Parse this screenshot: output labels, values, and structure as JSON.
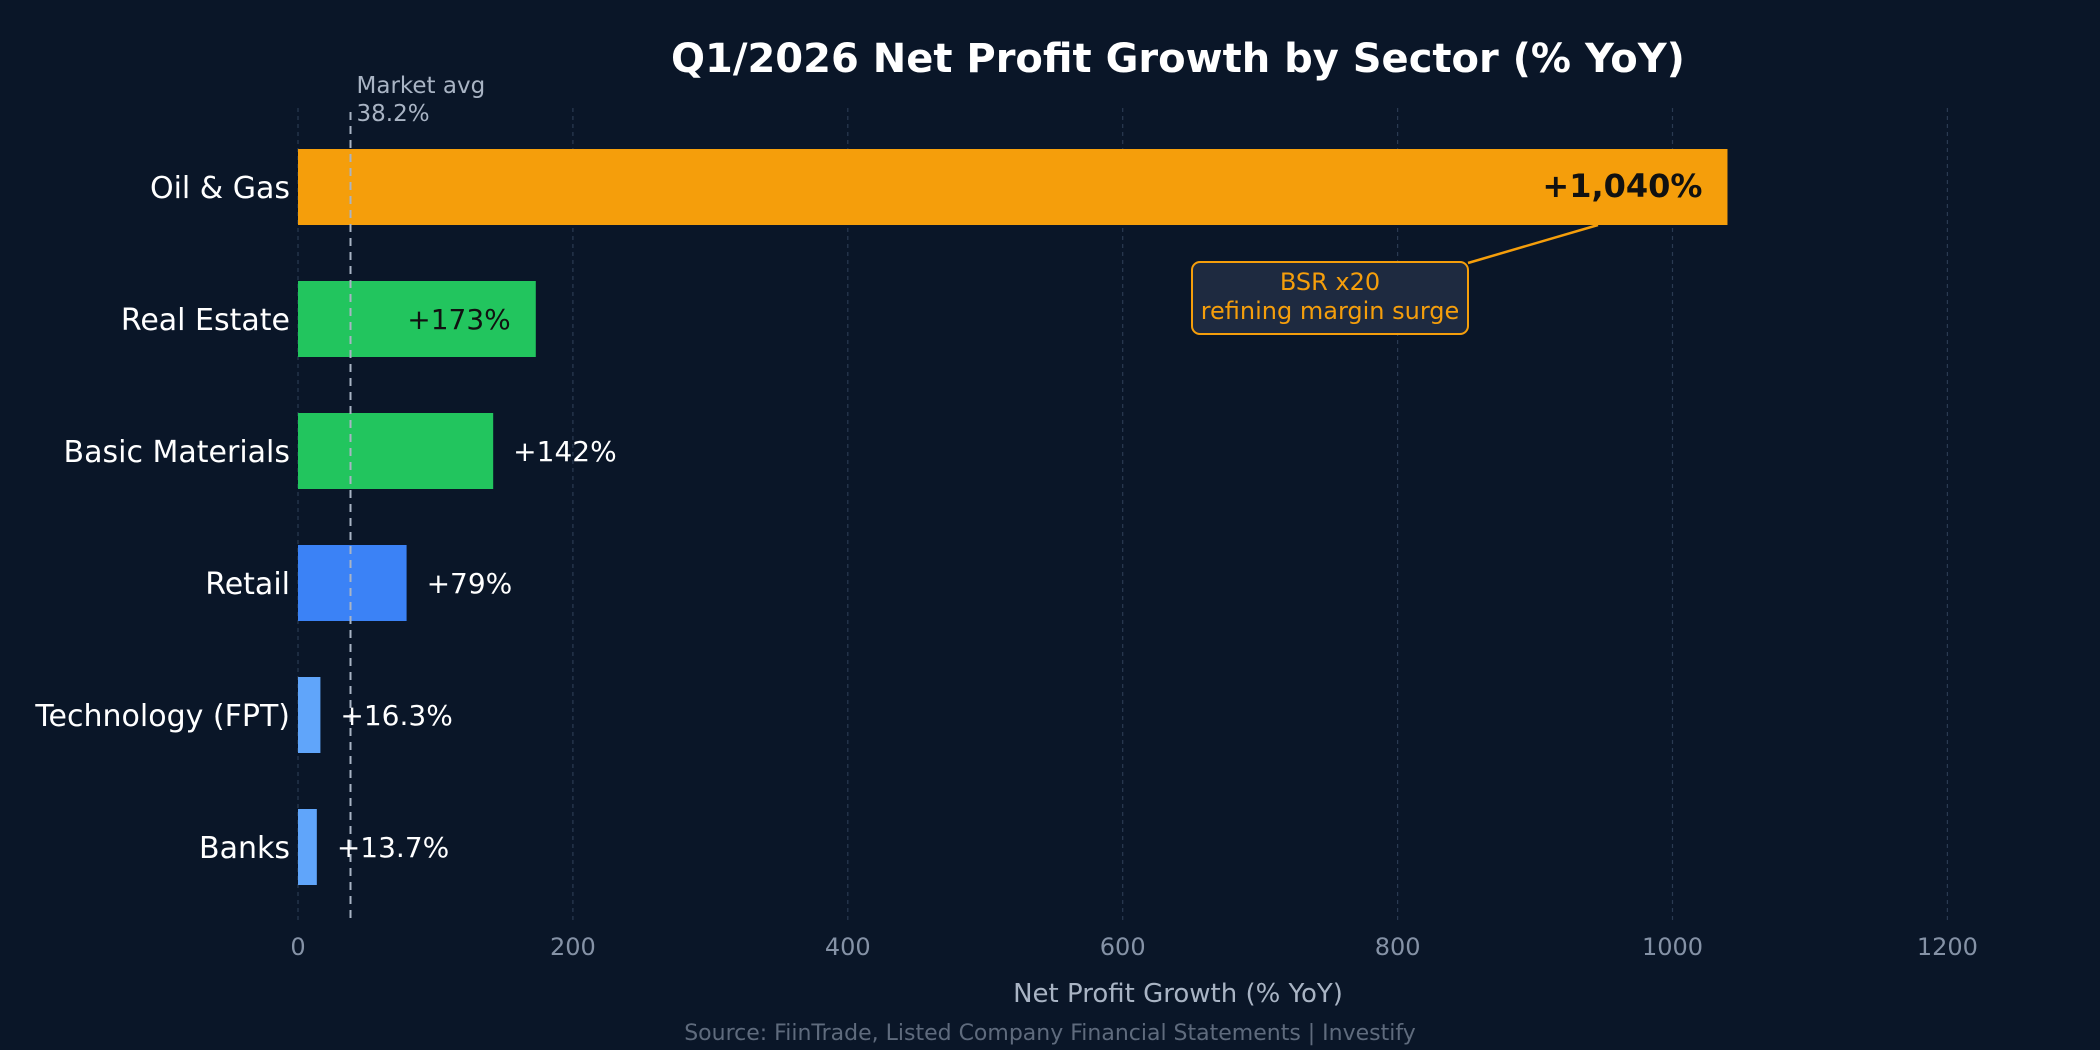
{
  "chart_data": {
    "type": "bar",
    "orientation": "horizontal",
    "title": "Q1/2026 Net Profit Growth by Sector (% YoY)",
    "xlabel": "Net Profit Growth (% YoY)",
    "ylabel": "",
    "xlim": [
      0,
      1300
    ],
    "xticks": [
      0,
      200,
      400,
      600,
      800,
      1000,
      1200
    ],
    "grid": "vertical dashed",
    "categories": [
      "Oil & Gas",
      "Real Estate",
      "Basic Materials",
      "Retail",
      "Technology (FPT)",
      "Banks"
    ],
    "values": [
      1040,
      173,
      142,
      79,
      16.3,
      13.7
    ],
    "value_labels": [
      "+1,040%",
      "+173%",
      "+142%",
      "+79%",
      "+16.3%",
      "+13.7%"
    ],
    "colors": [
      "#f59e0b",
      "#22c55e",
      "#22c55e",
      "#3b82f6",
      "#60a5fa",
      "#60a5fa"
    ],
    "reference_line": {
      "value": 38.2,
      "label_line1": "Market avg",
      "label_line2": "38.2%"
    },
    "annotation": {
      "line1": "BSR x20",
      "line2": "refining margin surge",
      "category": "Oil & Gas",
      "color": "#f59e0b"
    },
    "source": "Source: FiinTrade, Listed Company Financial Statements  |  Investify"
  }
}
